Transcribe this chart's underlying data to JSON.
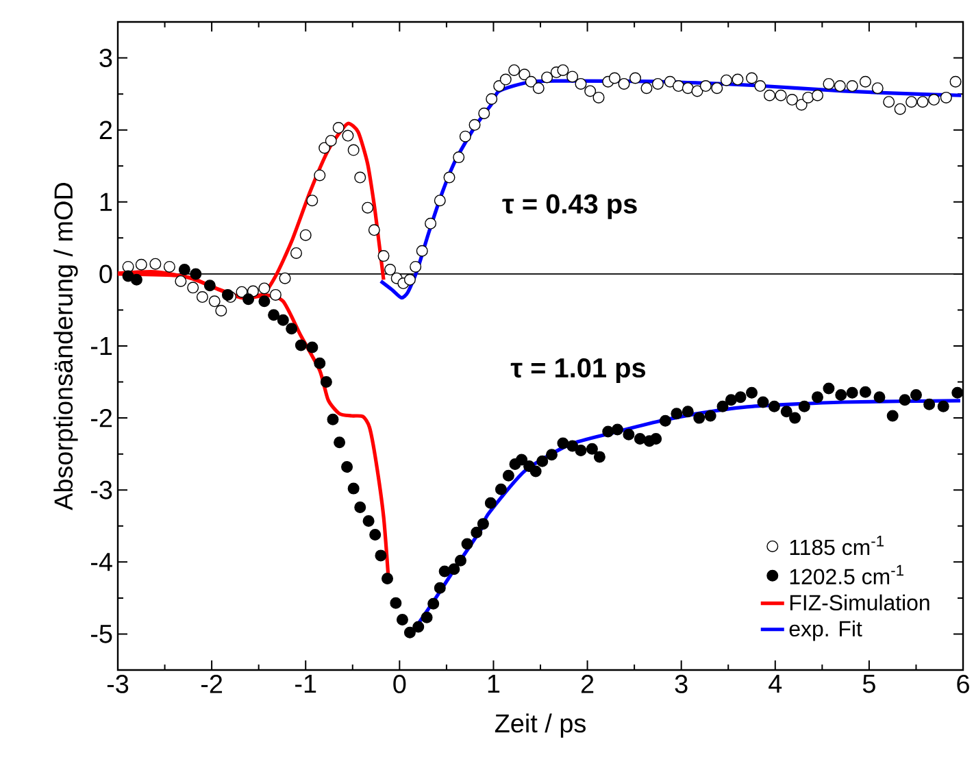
{
  "chart_data": {
    "type": "scatter",
    "xlabel": "Zeit / ps",
    "ylabel": "Absorptionsänderung / mOD",
    "xlim": [
      -3,
      6
    ],
    "ylim": [
      -5.5,
      3.5
    ],
    "xticks": [
      -3,
      -2,
      -1,
      0,
      1,
      2,
      3,
      4,
      5,
      6
    ],
    "yticks": [
      -5,
      -4,
      -3,
      -2,
      -1,
      0,
      1,
      2,
      3
    ],
    "legend": "bottom right",
    "ref_lines": [
      {
        "axis": "y",
        "value": 0,
        "color": "#000000"
      }
    ],
    "annotations": [
      "τ = 0.43 ps",
      "τ = 1.01 ps"
    ],
    "series": [
      {
        "name": "1185 cm$^{-1}$",
        "marker": "circle",
        "color": "#ffffff",
        "x": [
          -2.89,
          -2.75,
          -2.6,
          -2.45,
          -2.33,
          -2.2,
          -2.1,
          -1.97,
          -1.9,
          -1.8,
          -1.68,
          -1.56,
          -1.44,
          -1.32,
          -1.22,
          -1.1,
          -1.0,
          -0.93,
          -0.85,
          -0.8,
          -0.73,
          -0.65,
          -0.55,
          -0.49,
          -0.42,
          -0.34,
          -0.27,
          -0.17,
          -0.1,
          -0.03,
          0.04,
          0.11,
          0.17,
          0.24,
          0.33,
          0.43,
          0.53,
          0.63,
          0.7,
          0.8,
          0.9,
          0.98,
          1.06,
          1.13,
          1.22,
          1.33,
          1.4,
          1.48,
          1.57,
          1.67,
          1.74,
          1.84,
          1.93,
          2.03,
          2.12,
          2.22,
          2.29,
          2.39,
          2.51,
          2.63,
          2.75,
          2.88,
          2.97,
          3.07,
          3.17,
          3.26,
          3.38,
          3.48,
          3.6,
          3.75,
          3.84,
          3.94,
          4.06,
          4.18,
          4.28,
          4.35,
          4.45,
          4.57,
          4.69,
          4.82,
          4.96,
          5.09,
          5.21,
          5.33,
          5.45,
          5.57,
          5.69,
          5.82,
          5.92
        ],
        "values": [
          0.1,
          0.13,
          0.14,
          0.1,
          -0.1,
          -0.19,
          -0.32,
          -0.38,
          -0.51,
          -0.32,
          -0.25,
          -0.24,
          -0.2,
          -0.29,
          -0.06,
          0.29,
          0.54,
          1.02,
          1.37,
          1.75,
          1.85,
          2.03,
          1.92,
          1.72,
          1.34,
          0.92,
          0.61,
          0.25,
          0.06,
          -0.06,
          -0.13,
          -0.08,
          0.1,
          0.32,
          0.7,
          1.02,
          1.34,
          1.62,
          1.91,
          2.07,
          2.23,
          2.43,
          2.61,
          2.7,
          2.83,
          2.77,
          2.67,
          2.58,
          2.73,
          2.8,
          2.83,
          2.74,
          2.64,
          2.54,
          2.45,
          2.67,
          2.72,
          2.64,
          2.72,
          2.58,
          2.64,
          2.67,
          2.61,
          2.58,
          2.54,
          2.61,
          2.58,
          2.69,
          2.7,
          2.72,
          2.61,
          2.48,
          2.48,
          2.42,
          2.35,
          2.45,
          2.48,
          2.64,
          2.61,
          2.61,
          2.67,
          2.58,
          2.39,
          2.29,
          2.39,
          2.39,
          2.42,
          2.45,
          2.67
        ]
      },
      {
        "name": "1202.5 cm$^{-1}$",
        "marker": "circle",
        "color": "#000000",
        "x": [
          -2.89,
          -2.8,
          -2.29,
          -2.17,
          -2.02,
          -1.83,
          -1.61,
          -1.44,
          -1.34,
          -1.24,
          -1.15,
          -1.05,
          -0.93,
          -0.85,
          -0.78,
          -0.71,
          -0.64,
          -0.56,
          -0.49,
          -0.42,
          -0.33,
          -0.26,
          -0.2,
          -0.13,
          -0.04,
          0.03,
          0.11,
          0.2,
          0.29,
          0.36,
          0.43,
          0.48,
          0.58,
          0.65,
          0.72,
          0.82,
          0.89,
          0.97,
          1.08,
          1.16,
          1.23,
          1.3,
          1.38,
          1.45,
          1.52,
          1.62,
          1.74,
          1.84,
          1.93,
          2.05,
          2.13,
          2.22,
          2.32,
          2.44,
          2.56,
          2.66,
          2.73,
          2.83,
          2.95,
          3.07,
          3.19,
          3.31,
          3.44,
          3.53,
          3.63,
          3.75,
          3.87,
          3.99,
          4.12,
          4.21,
          4.31,
          4.45,
          4.57,
          4.7,
          4.82,
          4.96,
          5.11,
          5.25,
          5.38,
          5.5,
          5.64,
          5.79,
          5.94
        ],
        "values": [
          -0.03,
          -0.08,
          0.06,
          0,
          -0.16,
          -0.29,
          -0.35,
          -0.38,
          -0.57,
          -0.64,
          -0.76,
          -0.99,
          -1.02,
          -1.24,
          -1.5,
          -2.02,
          -2.34,
          -2.68,
          -2.98,
          -3.24,
          -3.43,
          -3.62,
          -3.91,
          -4.23,
          -4.57,
          -4.8,
          -4.98,
          -4.9,
          -4.77,
          -4.58,
          -4.36,
          -4.13,
          -4.1,
          -3.98,
          -3.75,
          -3.59,
          -3.47,
          -3.18,
          -2.99,
          -2.8,
          -2.64,
          -2.58,
          -2.67,
          -2.74,
          -2.6,
          -2.51,
          -2.35,
          -2.39,
          -2.45,
          -2.43,
          -2.54,
          -2.19,
          -2.16,
          -2.23,
          -2.29,
          -2.32,
          -2.29,
          -2.04,
          -1.94,
          -1.91,
          -2.0,
          -1.97,
          -1.84,
          -1.75,
          -1.71,
          -1.65,
          -1.78,
          -1.84,
          -1.91,
          -2.0,
          -1.84,
          -1.71,
          -1.59,
          -1.68,
          -1.65,
          -1.64,
          -1.71,
          -1.97,
          -1.75,
          -1.68,
          -1.81,
          -1.84,
          -1.65
        ]
      },
      {
        "name": "FIZ-Simulation",
        "type": "line",
        "marker": "none",
        "color": "#ff0000",
        "line_style": "solid",
        "x": [
          -3,
          -2.6,
          -2.21,
          -1.92,
          -1.68,
          -1.46,
          -1.32,
          -1.15,
          -0.95,
          -0.76,
          -0.61,
          -0.54,
          -0.44,
          -0.34,
          -0.27,
          -0.22,
          -0.17
        ],
        "values": [
          0.01,
          0.03,
          -0.06,
          -0.22,
          -0.33,
          -0.29,
          -0.03,
          0.45,
          1.15,
          1.72,
          2.01,
          2.09,
          1.97,
          1.53,
          0.96,
          0.45,
          -0.08
        ]
      },
      {
        "name": "exp. Fit",
        "type": "line",
        "marker": "none",
        "color": "#0000ff",
        "line_style": "solid",
        "x": [
          -0.2,
          -0.08,
          0.02,
          0.09,
          0.19,
          0.31,
          0.46,
          0.6,
          0.8,
          0.98,
          1.06,
          1.4,
          1.81,
          2.78,
          3.75,
          4.72,
          5.69,
          5.98
        ],
        "values": [
          -0.1,
          -0.22,
          -0.33,
          -0.25,
          0.06,
          0.57,
          1.15,
          1.59,
          2.04,
          2.36,
          2.54,
          2.67,
          2.68,
          2.67,
          2.62,
          2.54,
          2.49,
          2.48
        ]
      },
      {
        "type": "line",
        "marker": "none",
        "color": "#ff0000",
        "line_style": "solid",
        "x": [
          -3,
          -2.31,
          -1.97,
          -1.68,
          -1.44,
          -1.24,
          -1.05,
          -0.85,
          -0.76,
          -0.64,
          -0.51,
          -0.39,
          -0.32,
          -0.25,
          -0.17,
          -0.12
        ],
        "values": [
          0,
          -0.03,
          -0.19,
          -0.32,
          -0.29,
          -0.38,
          -0.86,
          -1.34,
          -1.75,
          -1.94,
          -1.97,
          -1.98,
          -2.13,
          -2.61,
          -3.37,
          -4.2
        ]
      },
      {
        "type": "line",
        "marker": "none",
        "color": "#0000ff",
        "line_style": "solid",
        "x": [
          0.14,
          0.36,
          0.6,
          0.89,
          0.94,
          1.33,
          1.81,
          2.29,
          2.78,
          3.26,
          3.75,
          4.72,
          5.97
        ],
        "values": [
          -4.97,
          -4.55,
          -4.07,
          -3.5,
          -3.34,
          -2.74,
          -2.37,
          -2.2,
          -2.04,
          -1.92,
          -1.84,
          -1.78,
          -1.76
        ]
      }
    ]
  }
}
